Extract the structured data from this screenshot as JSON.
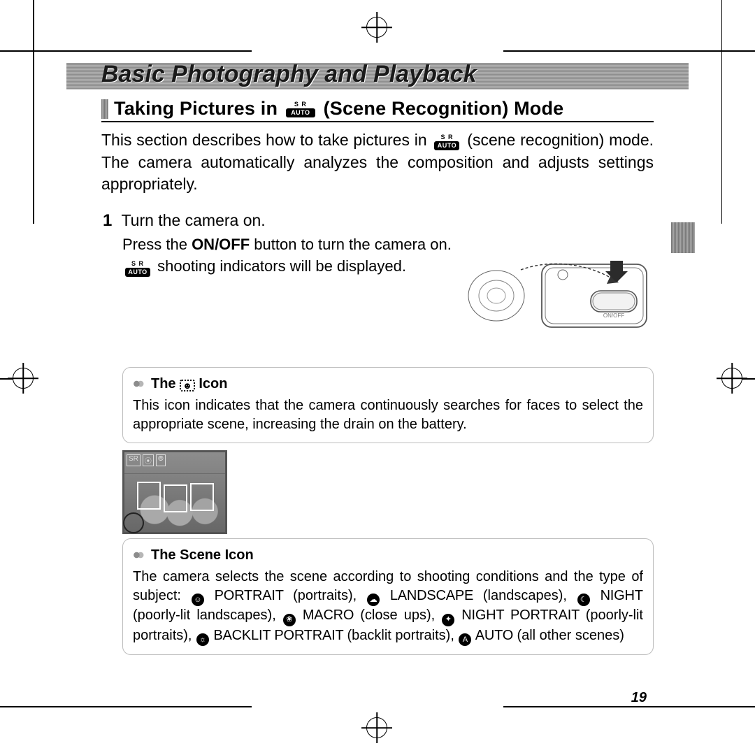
{
  "page_number": "19",
  "chapter_title": "Basic Photography and Playback",
  "section": {
    "prefix": "Taking Pictures in",
    "mode_icon": "SR AUTO",
    "suffix": "(Scene Recognition) Mode"
  },
  "intro": {
    "line1": "This section describes how to take pictures in",
    "line2": "(scene recognition) mode. The camera automatically analyzes the composition and adjusts settings appropriately."
  },
  "step1": {
    "number": "1",
    "heading": "Turn the camera on.",
    "line_a": "Press the",
    "onoff": "ON/OFF",
    "line_b": "button to turn the camera on.",
    "line_c": "shooting indicators will be displayed."
  },
  "camera_label": "ON/OFF",
  "note1": {
    "title_prefix": "The",
    "title_suffix": "Icon",
    "body": "This icon indicates that the camera continuously searches for faces to select the appropriate scene, increasing the drain on the battery."
  },
  "note2": {
    "title": "The Scene Icon",
    "lead": "The camera selects the scene according to shooting conditions and the type of subject:",
    "scenes": [
      {
        "glyph": "☺",
        "name": "PORTRAIT",
        "desc": "(portraits),"
      },
      {
        "glyph": "☁",
        "name": "LANDSCAPE",
        "desc": "(landscapes),"
      },
      {
        "glyph": "☾",
        "name": "NIGHT",
        "desc": "(poorly-lit landscapes),"
      },
      {
        "glyph": "❀",
        "name": "MACRO",
        "desc": "(close ups),"
      },
      {
        "glyph": "✦",
        "name": "NIGHT PORTRAIT",
        "desc": "(poorly-lit portraits),"
      },
      {
        "glyph": "☼",
        "name": "BACKLIT PORTRAIT",
        "desc": "(backlit portraits),"
      },
      {
        "glyph": "A",
        "name": "AUTO",
        "desc": "(all other scenes)"
      }
    ]
  },
  "colors": {
    "text": "#000000",
    "rule": "#bdbdbd",
    "band": "#8f8f8f"
  }
}
